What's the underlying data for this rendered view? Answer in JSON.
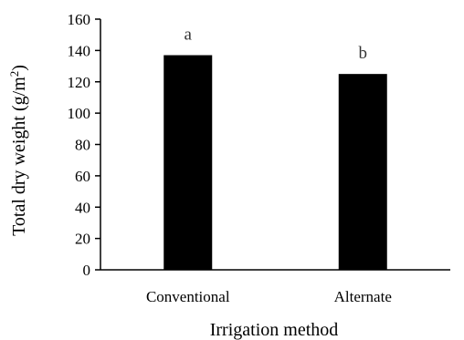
{
  "chart_data": {
    "type": "bar",
    "title": "",
    "categories": [
      "Conventional",
      "Alternate"
    ],
    "series": [
      {
        "values": [
          137,
          125
        ]
      }
    ],
    "data_labels": [
      "a",
      "b"
    ],
    "xlabel": "Irrigation method",
    "ylabel": {
      "text": "Total dry weight (g/m",
      "superscript": "2",
      "suffix": ")"
    },
    "ylim": [
      0,
      160
    ],
    "yticks": [
      0,
      20,
      40,
      60,
      80,
      100,
      120,
      140,
      160
    ],
    "grid": false,
    "legend": "none",
    "colors": {
      "bar": "#000000",
      "axis": "#000000",
      "data_label": "#333333"
    }
  }
}
